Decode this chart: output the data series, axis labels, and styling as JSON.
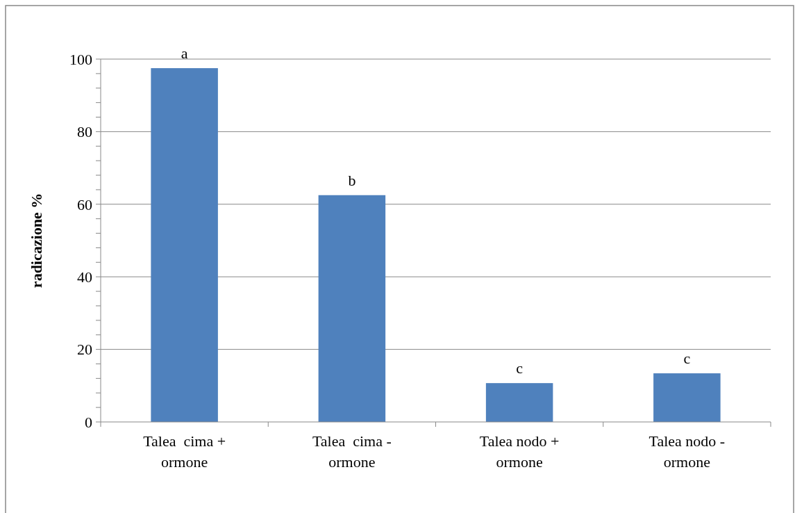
{
  "chart_data": {
    "type": "bar",
    "ylabel": "radicazione %",
    "categories": [
      "Talea  cima + ormone",
      "Talea  cima - ormone",
      "Talea nodo + ormone",
      "Talea nodo - ormone"
    ],
    "values": [
      97.5,
      62.5,
      10.7,
      13.4
    ],
    "color": "#4f81bd",
    "ylim": [
      0,
      100
    ],
    "yticks": [
      0,
      {
        "value": 4,
        "label": null
      },
      {
        "value": 8,
        "label": null
      },
      {
        "value": 12,
        "label": null
      },
      {
        "value": 16,
        "label": null
      },
      20,
      {
        "value": 24,
        "label": null
      },
      {
        "value": 28,
        "label": null
      },
      {
        "value": 32,
        "label": null
      },
      {
        "value": 36,
        "label": null
      },
      40,
      {
        "value": 44,
        "label": null
      },
      {
        "value": 48,
        "label": null
      },
      {
        "value": 52,
        "label": null
      },
      {
        "value": 56,
        "label": null
      },
      60,
      {
        "value": 64,
        "label": null
      },
      {
        "value": 68,
        "label": null
      },
      {
        "value": 72,
        "label": null
      },
      {
        "value": 76,
        "label": null
      },
      80,
      {
        "value": 84,
        "label": null
      },
      {
        "value": 88,
        "label": null
      },
      {
        "value": 92,
        "label": null
      },
      {
        "value": 96,
        "label": null
      },
      100
    ],
    "grid": "y",
    "annotations": [
      {
        "text": "a",
        "x": "Talea  cima + ormone",
        "y": 97.5
      },
      {
        "text": "b",
        "x": "Talea  cima - ormone",
        "y": 62.5
      },
      {
        "text": "c",
        "x": "Talea nodo + ormone",
        "y": 10.7
      },
      {
        "text": "c",
        "x": "Talea nodo - ormone",
        "y": 13.4
      }
    ]
  }
}
